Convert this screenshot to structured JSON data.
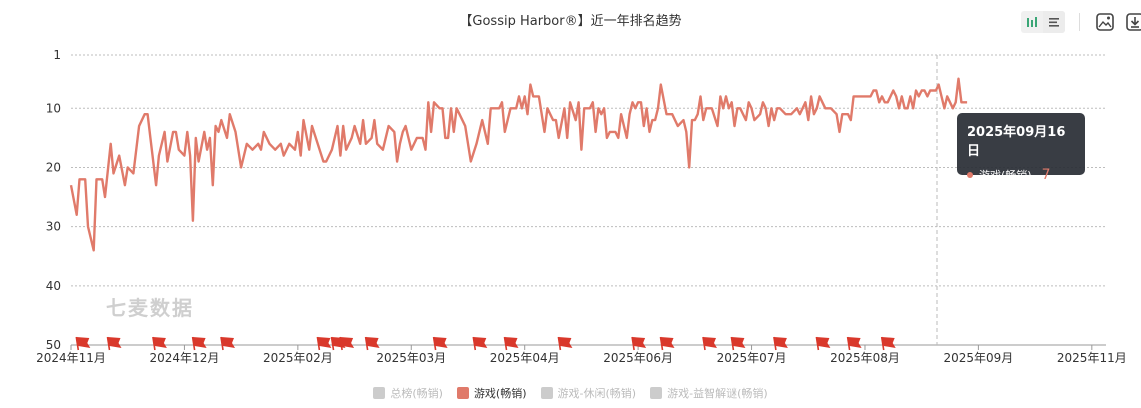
{
  "title": "【Gossip Harbor®】近一年排名趋势",
  "watermark": "七麦数据",
  "toolbar": {
    "icons": [
      "bar-chart-icon",
      "list-icon",
      "save-image-icon",
      "download-icon"
    ]
  },
  "tooltip": {
    "date": "2025年09月16日",
    "series": "游戏(畅销)",
    "value": "7"
  },
  "legend": [
    {
      "label": "总榜(畅销)",
      "active": false
    },
    {
      "label": "游戏(畅销)",
      "active": true
    },
    {
      "label": "游戏-休闲(畅销)",
      "active": false
    },
    {
      "label": "游戏-益智解谜(畅销)",
      "active": false
    }
  ],
  "colors": {
    "line": "#e07a6a",
    "flag": "#d9382b",
    "tooltip_bg": "#282c34"
  },
  "chart_data": {
    "type": "line",
    "y_inverted": true,
    "ylim": [
      1,
      50
    ],
    "yticks": [
      1,
      10,
      20,
      30,
      40,
      50
    ],
    "xlim": [
      0,
      365
    ],
    "xticks": [
      {
        "d": 0,
        "label": "2024年11月"
      },
      {
        "d": 40,
        "label": "2024年12月"
      },
      {
        "d": 80,
        "label": "2025年02月"
      },
      {
        "d": 120,
        "label": "2025年03月"
      },
      {
        "d": 160,
        "label": "2025年04月"
      },
      {
        "d": 200,
        "label": "2025年06月"
      },
      {
        "d": 240,
        "label": "2025年07月"
      },
      {
        "d": 280,
        "label": "2025年08月"
      },
      {
        "d": 320,
        "label": "2025年09月"
      },
      {
        "d": 360,
        "label": "2025年11月"
      }
    ],
    "series": [
      {
        "name": "游戏(畅销)",
        "points": [
          [
            0,
            23
          ],
          [
            2,
            28
          ],
          [
            3,
            22
          ],
          [
            5,
            22
          ],
          [
            6,
            30
          ],
          [
            8,
            34
          ],
          [
            9,
            22
          ],
          [
            11,
            22
          ],
          [
            12,
            25
          ],
          [
            14,
            16
          ],
          [
            15,
            21
          ],
          [
            17,
            18
          ],
          [
            19,
            23
          ],
          [
            20,
            20
          ],
          [
            22,
            21
          ],
          [
            24,
            13
          ],
          [
            26,
            11
          ],
          [
            27,
            11
          ],
          [
            28,
            15
          ],
          [
            30,
            23
          ],
          [
            31,
            18
          ],
          [
            33,
            14
          ],
          [
            34,
            19
          ],
          [
            36,
            14
          ],
          [
            37,
            14
          ],
          [
            38,
            17
          ],
          [
            40,
            18
          ],
          [
            41,
            14
          ],
          [
            42,
            18
          ],
          [
            43,
            29
          ],
          [
            44,
            15
          ],
          [
            45,
            19
          ],
          [
            47,
            14
          ],
          [
            48,
            17
          ],
          [
            49,
            15
          ],
          [
            50,
            23
          ],
          [
            51,
            13
          ],
          [
            52,
            14
          ],
          [
            53,
            12
          ],
          [
            55,
            15
          ],
          [
            56,
            11
          ],
          [
            58,
            14
          ],
          [
            60,
            20
          ],
          [
            62,
            16
          ],
          [
            64,
            17
          ],
          [
            66,
            16
          ],
          [
            67,
            17
          ],
          [
            68,
            14
          ],
          [
            70,
            16
          ],
          [
            72,
            17
          ],
          [
            74,
            16
          ],
          [
            75,
            18
          ],
          [
            77,
            16
          ],
          [
            79,
            17
          ],
          [
            80,
            14
          ],
          [
            81,
            18
          ],
          [
            82,
            12
          ],
          [
            84,
            17
          ],
          [
            85,
            13
          ],
          [
            87,
            16
          ],
          [
            89,
            19
          ],
          [
            90,
            19
          ],
          [
            92,
            17
          ],
          [
            94,
            13
          ],
          [
            95,
            18
          ],
          [
            96,
            13
          ],
          [
            97,
            17
          ],
          [
            99,
            15
          ],
          [
            100,
            13
          ],
          [
            102,
            16
          ],
          [
            103,
            12
          ],
          [
            104,
            16
          ],
          [
            106,
            15
          ],
          [
            107,
            12
          ],
          [
            108,
            16
          ],
          [
            110,
            17
          ],
          [
            112,
            13
          ],
          [
            114,
            14
          ],
          [
            115,
            19
          ],
          [
            116,
            16
          ],
          [
            117,
            14
          ],
          [
            118,
            13
          ],
          [
            120,
            17
          ],
          [
            122,
            15
          ],
          [
            124,
            15
          ],
          [
            125,
            17
          ],
          [
            126,
            9
          ],
          [
            127,
            14
          ],
          [
            128,
            9
          ],
          [
            130,
            10
          ],
          [
            131,
            10
          ],
          [
            132,
            15
          ],
          [
            133,
            15
          ],
          [
            134,
            10
          ],
          [
            135,
            14
          ],
          [
            136,
            10
          ],
          [
            137,
            11
          ],
          [
            139,
            13
          ],
          [
            141,
            19
          ],
          [
            143,
            16
          ],
          [
            145,
            12
          ],
          [
            147,
            16
          ],
          [
            148,
            10
          ],
          [
            150,
            10
          ],
          [
            151,
            10
          ],
          [
            152,
            9
          ],
          [
            153,
            14
          ],
          [
            155,
            10
          ],
          [
            157,
            10
          ],
          [
            158,
            8
          ],
          [
            159,
            10
          ],
          [
            160,
            8
          ],
          [
            161,
            11
          ],
          [
            162,
            6
          ],
          [
            163,
            8
          ],
          [
            165,
            8
          ],
          [
            167,
            14
          ],
          [
            168,
            10
          ],
          [
            170,
            12
          ],
          [
            171,
            12
          ],
          [
            172,
            15
          ],
          [
            174,
            10
          ],
          [
            175,
            15
          ],
          [
            176,
            9
          ],
          [
            178,
            12
          ],
          [
            179,
            9
          ],
          [
            180,
            17
          ],
          [
            181,
            10
          ],
          [
            183,
            10
          ],
          [
            184,
            9
          ],
          [
            185,
            14
          ],
          [
            186,
            10
          ],
          [
            187,
            11
          ],
          [
            188,
            10
          ],
          [
            189,
            15
          ],
          [
            190,
            14
          ],
          [
            192,
            14
          ],
          [
            193,
            15
          ],
          [
            194,
            11
          ],
          [
            196,
            15
          ],
          [
            197,
            11
          ],
          [
            198,
            9
          ],
          [
            199,
            10
          ],
          [
            200,
            9
          ],
          [
            201,
            9
          ],
          [
            202,
            13
          ],
          [
            203,
            10
          ],
          [
            204,
            14
          ],
          [
            205,
            12
          ],
          [
            206,
            12
          ],
          [
            207,
            10
          ],
          [
            208,
            6
          ],
          [
            210,
            11
          ],
          [
            212,
            11
          ],
          [
            214,
            13
          ],
          [
            216,
            12
          ],
          [
            217,
            14
          ],
          [
            218,
            20
          ],
          [
            219,
            12
          ],
          [
            220,
            12
          ],
          [
            221,
            11
          ],
          [
            222,
            8
          ],
          [
            223,
            12
          ],
          [
            224,
            10
          ],
          [
            226,
            10
          ],
          [
            228,
            13
          ],
          [
            229,
            8
          ],
          [
            230,
            10
          ],
          [
            231,
            8
          ],
          [
            232,
            10
          ],
          [
            233,
            9
          ],
          [
            234,
            13
          ],
          [
            235,
            10
          ],
          [
            236,
            10
          ],
          [
            238,
            12
          ],
          [
            239,
            9
          ],
          [
            240,
            10
          ],
          [
            241,
            12
          ],
          [
            243,
            11
          ],
          [
            244,
            9
          ],
          [
            245,
            10
          ],
          [
            246,
            13
          ],
          [
            247,
            10
          ],
          [
            248,
            12
          ],
          [
            249,
            10
          ],
          [
            250,
            10
          ],
          [
            252,
            11
          ],
          [
            254,
            11
          ],
          [
            256,
            10
          ],
          [
            257,
            11
          ],
          [
            258,
            10
          ],
          [
            259,
            9
          ],
          [
            260,
            12
          ],
          [
            261,
            8
          ],
          [
            262,
            11
          ],
          [
            263,
            10
          ],
          [
            264,
            8
          ],
          [
            265,
            9
          ],
          [
            266,
            10
          ],
          [
            267,
            10
          ],
          [
            268,
            10
          ],
          [
            270,
            11
          ],
          [
            271,
            14
          ],
          [
            272,
            11
          ],
          [
            274,
            11
          ],
          [
            275,
            12
          ],
          [
            276,
            8
          ],
          [
            278,
            8
          ],
          [
            280,
            8
          ],
          [
            282,
            8
          ],
          [
            283,
            7
          ],
          [
            284,
            7
          ],
          [
            285,
            9
          ],
          [
            286,
            8
          ],
          [
            287,
            9
          ],
          [
            288,
            9
          ],
          [
            289,
            8
          ],
          [
            290,
            7
          ],
          [
            291,
            8
          ],
          [
            292,
            10
          ],
          [
            293,
            8
          ],
          [
            294,
            10
          ],
          [
            295,
            10
          ],
          [
            296,
            8
          ],
          [
            297,
            10
          ],
          [
            298,
            7
          ],
          [
            299,
            8
          ],
          [
            300,
            7
          ],
          [
            301,
            7
          ],
          [
            302,
            8
          ],
          [
            303,
            7
          ],
          [
            304,
            7
          ],
          [
            305,
            7
          ],
          [
            306,
            6
          ],
          [
            307,
            8
          ],
          [
            308,
            10
          ],
          [
            309,
            8
          ],
          [
            310,
            9
          ],
          [
            311,
            10
          ],
          [
            312,
            9
          ],
          [
            313,
            5
          ],
          [
            314,
            9
          ],
          [
            315,
            9
          ],
          [
            316,
            9
          ]
        ]
      }
    ],
    "flags": [
      4,
      15,
      31,
      45,
      55,
      89,
      94,
      97,
      106,
      130,
      144,
      155,
      174,
      200,
      210,
      225,
      235,
      250,
      265,
      276,
      288
    ]
  }
}
